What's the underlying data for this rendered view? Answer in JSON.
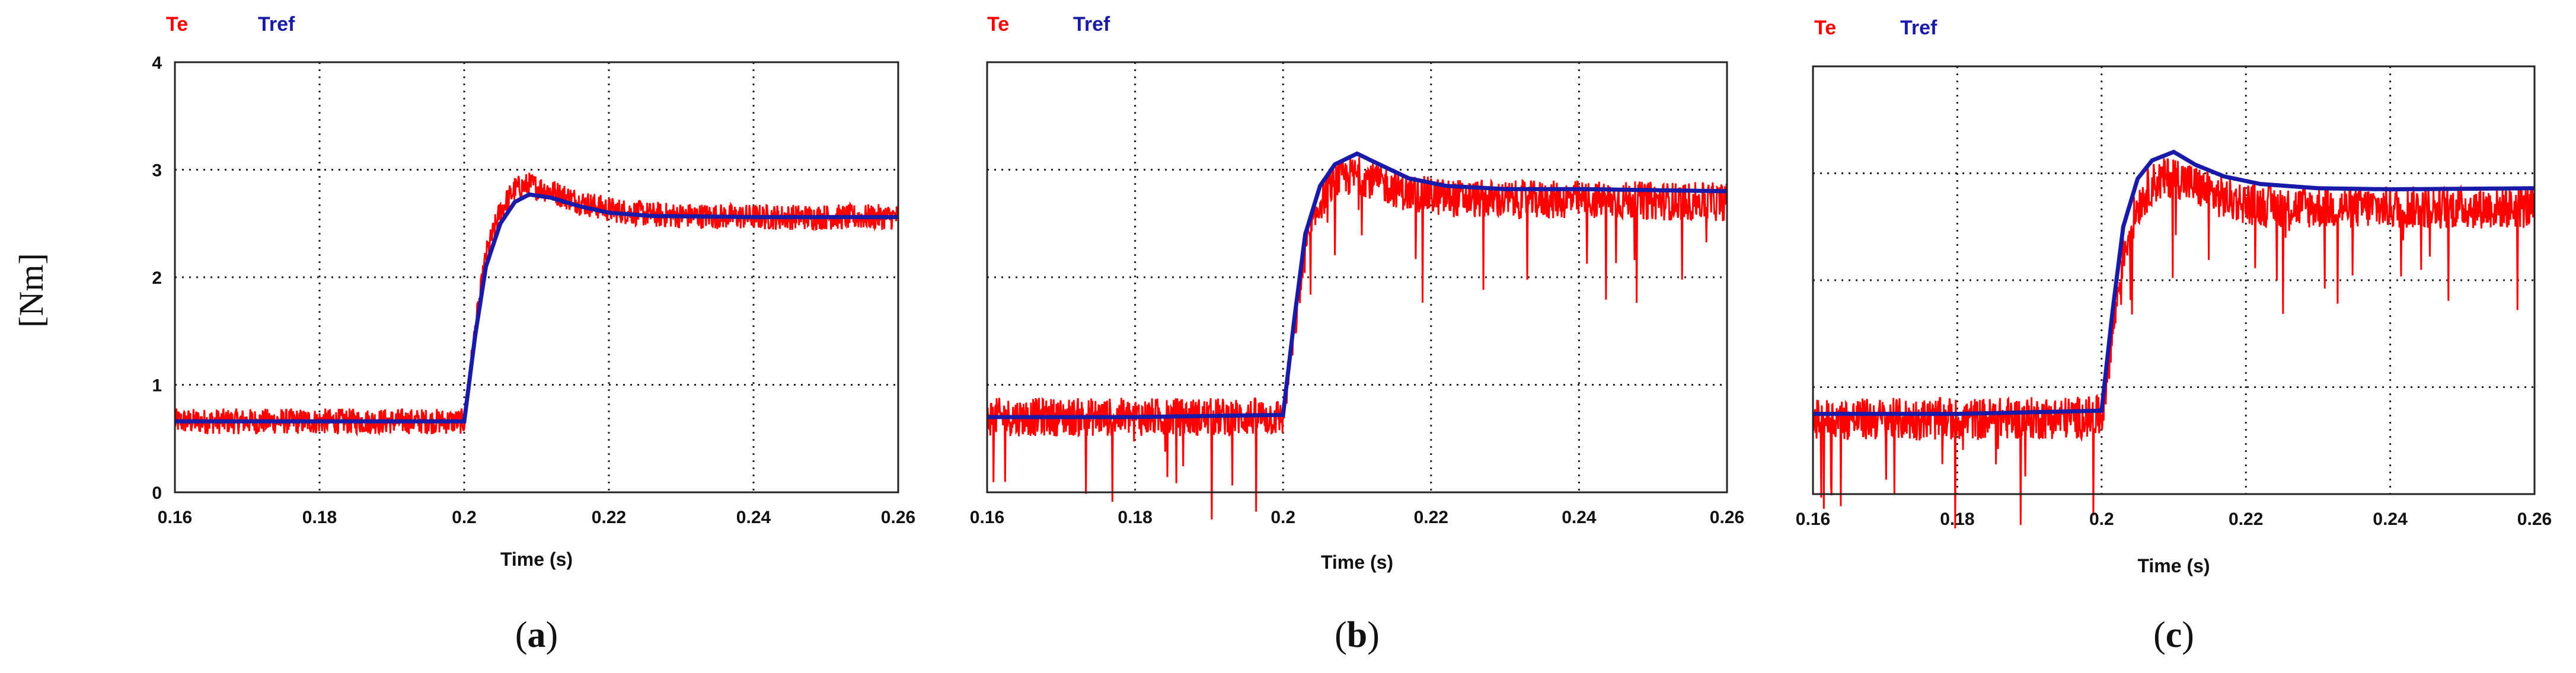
{
  "figure": {
    "ylabel": "[Nm]"
  },
  "chart_data": [
    {
      "type": "line",
      "panel": "a",
      "caption": "(a)",
      "caption_open": "(",
      "caption_letter": "a",
      "caption_close": ")",
      "xlabel": "Time (s)",
      "ylabel": "[Nm]",
      "xlim": [
        0.16,
        0.26
      ],
      "ylim": [
        0,
        4
      ],
      "xticks": [
        "0.16",
        "0.18",
        "0.2",
        "0.22",
        "0.24",
        "0.26"
      ],
      "yticks": [
        "0",
        "1",
        "2",
        "3",
        "4"
      ],
      "grid": "dotted",
      "legend": [
        "Te",
        "Tref"
      ],
      "colors": {
        "Te": "#ff0000",
        "Tref": "#1a1aa8"
      },
      "series": [
        {
          "name": "Tref",
          "x": [
            0.16,
            0.18,
            0.2,
            0.2015,
            0.203,
            0.205,
            0.207,
            0.209,
            0.212,
            0.216,
            0.22,
            0.226,
            0.24,
            0.26
          ],
          "y": [
            0.66,
            0.66,
            0.66,
            1.45,
            2.1,
            2.5,
            2.7,
            2.77,
            2.74,
            2.66,
            2.6,
            2.57,
            2.56,
            2.56
          ]
        },
        {
          "name": "Te",
          "x": [
            0.16,
            0.18,
            0.2,
            0.2015,
            0.203,
            0.205,
            0.207,
            0.209,
            0.212,
            0.216,
            0.22,
            0.226,
            0.24,
            0.26
          ],
          "y": [
            0.66,
            0.66,
            0.66,
            1.5,
            2.2,
            2.62,
            2.82,
            2.86,
            2.8,
            2.7,
            2.63,
            2.58,
            2.56,
            2.56
          ],
          "noise_amplitude": 0.12
        }
      ]
    },
    {
      "type": "line",
      "panel": "b",
      "caption": "(b)",
      "caption_open": "(",
      "caption_letter": "b",
      "caption_close": ")",
      "xlabel": "Time (s)",
      "ylabel": "[Nm]",
      "xlim": [
        0.16,
        0.26
      ],
      "ylim": [
        0,
        4
      ],
      "xticks": [
        "0.16",
        "0.18",
        "0.2",
        "0.22",
        "0.24",
        "0.26"
      ],
      "yticks": [],
      "grid": "dotted",
      "legend": [
        "Te",
        "Tref"
      ],
      "colors": {
        "Te": "#ff0000",
        "Tref": "#1a1aa8"
      },
      "series": [
        {
          "name": "Tref",
          "x": [
            0.16,
            0.18,
            0.2,
            0.2015,
            0.203,
            0.205,
            0.207,
            0.21,
            0.213,
            0.217,
            0.222,
            0.23,
            0.24,
            0.26
          ],
          "y": [
            0.7,
            0.7,
            0.72,
            1.6,
            2.4,
            2.85,
            3.05,
            3.15,
            3.05,
            2.92,
            2.85,
            2.82,
            2.82,
            2.8
          ]
        },
        {
          "name": "Te",
          "x": [
            0.16,
            0.18,
            0.2,
            0.2015,
            0.203,
            0.205,
            0.207,
            0.21,
            0.213,
            0.217,
            0.222,
            0.23,
            0.24,
            0.26
          ],
          "y": [
            0.7,
            0.7,
            0.7,
            1.5,
            2.25,
            2.7,
            2.9,
            2.95,
            2.88,
            2.78,
            2.74,
            2.72,
            2.72,
            2.7
          ],
          "noise_amplitude": 0.18
        }
      ]
    },
    {
      "type": "line",
      "panel": "c",
      "caption": "(c)",
      "caption_open": "(",
      "caption_letter": "c",
      "caption_close": ")",
      "xlabel": "Time (s)",
      "ylabel": "[Nm]",
      "xlim": [
        0.16,
        0.26
      ],
      "ylim": [
        0,
        4
      ],
      "xticks": [
        "0.16",
        "0.18",
        "0.2",
        "0.22",
        "0.24",
        "0.26"
      ],
      "yticks": [],
      "grid": "dotted",
      "legend": [
        "Te",
        "Tref"
      ],
      "colors": {
        "Te": "#ff0000",
        "Tref": "#1a1aa8"
      },
      "series": [
        {
          "name": "Tref",
          "x": [
            0.16,
            0.18,
            0.2,
            0.2015,
            0.203,
            0.205,
            0.207,
            0.21,
            0.213,
            0.217,
            0.222,
            0.23,
            0.24,
            0.26
          ],
          "y": [
            0.75,
            0.75,
            0.78,
            1.7,
            2.5,
            2.95,
            3.12,
            3.2,
            3.08,
            2.97,
            2.9,
            2.86,
            2.85,
            2.86
          ]
        },
        {
          "name": "Te",
          "x": [
            0.16,
            0.18,
            0.2,
            0.2015,
            0.203,
            0.205,
            0.207,
            0.21,
            0.213,
            0.217,
            0.222,
            0.23,
            0.24,
            0.26
          ],
          "y": [
            0.7,
            0.7,
            0.72,
            1.5,
            2.25,
            2.7,
            2.9,
            2.98,
            2.88,
            2.76,
            2.7,
            2.68,
            2.68,
            2.68
          ],
          "noise_amplitude": 0.2
        }
      ]
    }
  ]
}
